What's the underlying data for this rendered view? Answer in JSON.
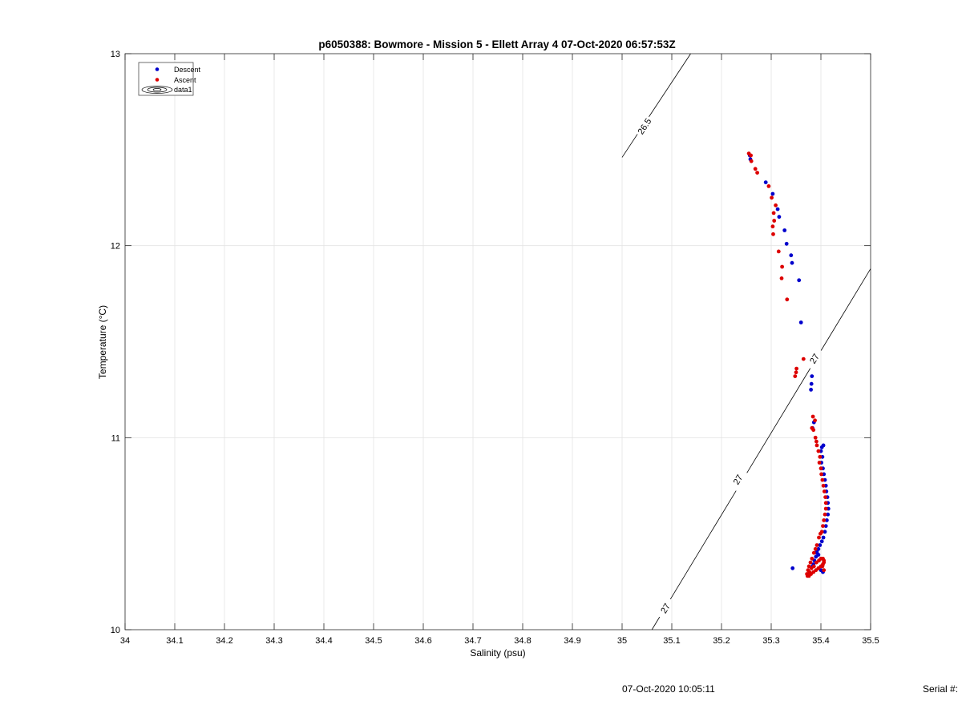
{
  "footer": {
    "timestamp": "07-Oct-2020 10:05:11",
    "serial_label": "Serial #:"
  },
  "chart_data": {
    "type": "scatter",
    "title": "p6050388: Bowmore - Mission 5 - Ellett Array 4 07-Oct-2020 06:57:53Z",
    "xlabel": "Salinity (psu)",
    "ylabel": "Temperature (°C)",
    "xlim": [
      34,
      35.5
    ],
    "ylim": [
      10,
      13
    ],
    "x_ticks": [
      34,
      34.1,
      34.2,
      34.3,
      34.4,
      34.5,
      34.6,
      34.7,
      34.8,
      34.9,
      35,
      35.1,
      35.2,
      35.3,
      35.4,
      35.5
    ],
    "x_tick_labels": [
      "34",
      "34.1",
      "34.2",
      "34.3",
      "34.4",
      "34.5",
      "34.6",
      "34.7",
      "34.8",
      "34.9",
      "35",
      "35.1",
      "35.2",
      "35.3",
      "35.4",
      "35.5"
    ],
    "y_ticks": [
      10,
      11,
      12,
      13
    ],
    "y_tick_labels": [
      "10",
      "11",
      "12",
      "13"
    ],
    "grid": true,
    "legend_position": "top-left",
    "legend": [
      {
        "label": "Descent",
        "color": "#0000cc",
        "marker": "dot"
      },
      {
        "label": "Ascent",
        "color": "#dd0000",
        "marker": "dot"
      },
      {
        "label": "data1",
        "color": "#000000",
        "marker": "contour"
      }
    ],
    "series": [
      {
        "name": "Descent",
        "color": "#0000cc",
        "points": [
          [
            35.257,
            12.47
          ],
          [
            35.258,
            12.45
          ],
          [
            35.289,
            12.33
          ],
          [
            35.303,
            12.27
          ],
          [
            35.313,
            12.19
          ],
          [
            35.316,
            12.15
          ],
          [
            35.327,
            12.08
          ],
          [
            35.331,
            12.01
          ],
          [
            35.34,
            11.95
          ],
          [
            35.342,
            11.91
          ],
          [
            35.356,
            11.82
          ],
          [
            35.36,
            11.6
          ],
          [
            35.382,
            11.32
          ],
          [
            35.381,
            11.28
          ],
          [
            35.38,
            11.25
          ],
          [
            35.386,
            11.08
          ],
          [
            35.383,
            11.05
          ],
          [
            35.405,
            10.96
          ],
          [
            35.402,
            10.95
          ],
          [
            35.4,
            10.93
          ],
          [
            35.403,
            10.9
          ],
          [
            35.401,
            10.87
          ],
          [
            35.404,
            10.84
          ],
          [
            35.406,
            10.81
          ],
          [
            35.408,
            10.78
          ],
          [
            35.41,
            10.75
          ],
          [
            35.411,
            10.72
          ],
          [
            35.413,
            10.69
          ],
          [
            35.414,
            10.66
          ],
          [
            35.415,
            10.63
          ],
          [
            35.414,
            10.6
          ],
          [
            35.412,
            10.57
          ],
          [
            35.41,
            10.54
          ],
          [
            35.408,
            10.51
          ],
          [
            35.405,
            10.48
          ],
          [
            35.402,
            10.46
          ],
          [
            35.398,
            10.44
          ],
          [
            35.395,
            10.42
          ],
          [
            35.392,
            10.4
          ],
          [
            35.39,
            10.38
          ],
          [
            35.387,
            10.36
          ],
          [
            35.385,
            10.34
          ],
          [
            35.383,
            10.33
          ],
          [
            35.4,
            10.31
          ],
          [
            35.404,
            10.3
          ],
          [
            35.343,
            10.32
          ],
          [
            35.395,
            10.39
          ],
          [
            35.392,
            10.41
          ]
        ]
      },
      {
        "name": "Ascent",
        "color": "#dd0000",
        "points": [
          [
            35.255,
            12.48
          ],
          [
            35.259,
            12.47
          ],
          [
            35.26,
            12.44
          ],
          [
            35.268,
            12.4
          ],
          [
            35.272,
            12.38
          ],
          [
            35.295,
            12.31
          ],
          [
            35.301,
            12.25
          ],
          [
            35.309,
            12.21
          ],
          [
            35.305,
            12.17
          ],
          [
            35.306,
            12.13
          ],
          [
            35.303,
            12.1
          ],
          [
            35.304,
            12.06
          ],
          [
            35.315,
            11.97
          ],
          [
            35.322,
            11.89
          ],
          [
            35.321,
            11.83
          ],
          [
            35.332,
            11.72
          ],
          [
            35.365,
            11.41
          ],
          [
            35.351,
            11.36
          ],
          [
            35.35,
            11.34
          ],
          [
            35.348,
            11.32
          ],
          [
            35.384,
            11.11
          ],
          [
            35.388,
            11.09
          ],
          [
            35.382,
            11.05
          ],
          [
            35.385,
            11.04
          ],
          [
            35.389,
            11.0
          ],
          [
            35.391,
            10.98
          ],
          [
            35.392,
            10.96
          ],
          [
            35.395,
            10.93
          ],
          [
            35.398,
            10.9
          ],
          [
            35.397,
            10.87
          ],
          [
            35.4,
            10.84
          ],
          [
            35.401,
            10.81
          ],
          [
            35.403,
            10.78
          ],
          [
            35.405,
            10.75
          ],
          [
            35.407,
            10.72
          ],
          [
            35.409,
            10.69
          ],
          [
            35.41,
            10.66
          ],
          [
            35.41,
            10.63
          ],
          [
            35.408,
            10.6
          ],
          [
            35.406,
            10.57
          ],
          [
            35.404,
            10.54
          ],
          [
            35.402,
            10.51
          ],
          [
            35.399,
            10.5
          ],
          [
            35.396,
            10.48
          ],
          [
            35.392,
            10.44
          ],
          [
            35.389,
            10.42
          ],
          [
            35.386,
            10.4
          ],
          [
            35.382,
            10.37
          ],
          [
            35.379,
            10.35
          ],
          [
            35.376,
            10.33
          ],
          [
            35.374,
            10.31
          ],
          [
            35.372,
            10.29
          ],
          [
            35.373,
            10.28
          ],
          [
            35.376,
            10.28
          ],
          [
            35.38,
            10.29
          ],
          [
            35.385,
            10.3
          ],
          [
            35.39,
            10.31
          ],
          [
            35.395,
            10.32
          ],
          [
            35.4,
            10.33
          ],
          [
            35.404,
            10.34
          ],
          [
            35.406,
            10.35
          ],
          [
            35.406,
            10.36
          ],
          [
            35.404,
            10.37
          ],
          [
            35.4,
            10.37
          ],
          [
            35.396,
            10.36
          ],
          [
            35.391,
            10.35
          ],
          [
            35.386,
            10.33
          ],
          [
            35.381,
            10.32
          ],
          [
            35.377,
            10.3
          ],
          [
            35.406,
            10.31
          ],
          [
            35.403,
            10.33
          ]
        ]
      }
    ],
    "isopycnals": [
      {
        "label": "26.5",
        "color": "#000000",
        "points": [
          [
            35.0,
            12.46
          ],
          [
            35.138,
            13.0
          ]
        ],
        "label_positions": [
          [
            35.046,
            12.62
          ]
        ]
      },
      {
        "label": "27",
        "color": "#000000",
        "points": [
          [
            35.06,
            10.0
          ],
          [
            35.5,
            11.88
          ]
        ],
        "label_positions": [
          [
            35.088,
            10.11
          ],
          [
            35.234,
            10.78
          ],
          [
            35.388,
            11.41
          ]
        ]
      }
    ]
  }
}
